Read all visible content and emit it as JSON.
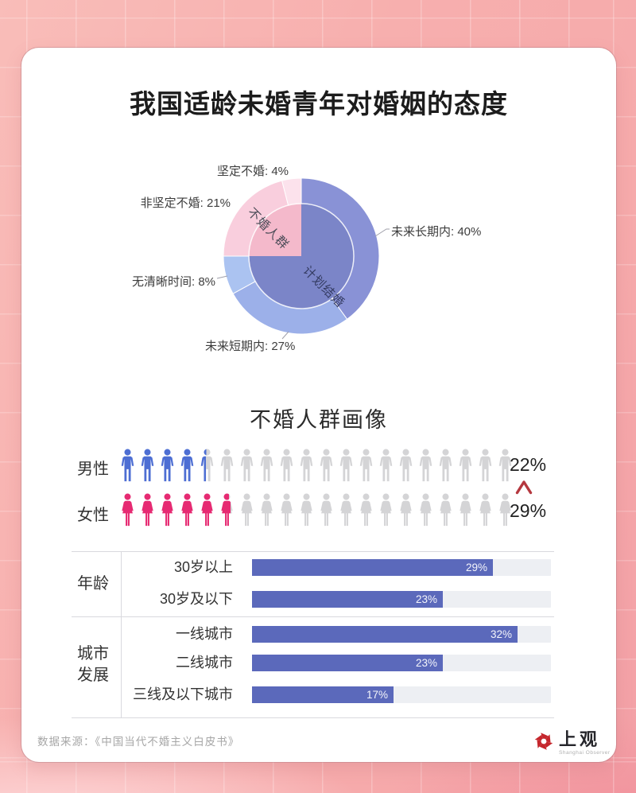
{
  "title": "我国适龄未婚青年对婚姻的态度",
  "section_heading": "不婚人群画像",
  "chart_data": [
    {
      "type": "pie",
      "title": "我国适龄未婚青年对婚姻的态度",
      "style": "two-level donut, clockwise from top",
      "inner_groups": [
        {
          "label": "计划结婚",
          "value": 75,
          "color": "#7b85c8"
        },
        {
          "label": "不婚人群",
          "value": 25,
          "color": "#f4b9cb"
        }
      ],
      "slices": [
        {
          "label": "未来长期内",
          "value": 40,
          "display": "未来长期内: 40%",
          "color": "#8992d6",
          "group": "计划结婚"
        },
        {
          "label": "未来短期内",
          "value": 27,
          "display": "未来短期内: 27%",
          "color": "#9cb0e9",
          "group": "计划结婚"
        },
        {
          "label": "无清晰时间",
          "value": 8,
          "display": "无清晰时间: 8%",
          "color": "#abc3f1",
          "group": "计划结婚"
        },
        {
          "label": "非坚定不婚",
          "value": 21,
          "display": "非坚定不婚: 21%",
          "color": "#f9cedd",
          "group": "不婚人群"
        },
        {
          "label": "坚定不婚",
          "value": 4,
          "display": "坚定不婚: 4%",
          "color": "#fce2ec",
          "group": "不婚人群"
        }
      ]
    },
    {
      "type": "pictogram",
      "title": "不婚人群画像",
      "total_icons": 20,
      "rows": [
        {
          "label": "男性",
          "icon": "male",
          "percent": 22,
          "display": "22%",
          "color": "#4d6ed3"
        },
        {
          "label": "女性",
          "icon": "female",
          "percent": 29,
          "display": "29%",
          "color": "#e62a72"
        }
      ],
      "empty_icon_color": "#d4d4d6",
      "comparison_marker": "∧",
      "comparison_marker_color": "#b5383f"
    },
    {
      "type": "bar",
      "orientation": "horizontal",
      "scale_max": 36,
      "bar_color": "#5b69bb",
      "track_color": "#edeff3",
      "groups": [
        {
          "label": "年龄",
          "rows": [
            {
              "label": "30岁以上",
              "value": 29,
              "display": "29%"
            },
            {
              "label": "30岁及以下",
              "value": 23,
              "display": "23%"
            }
          ]
        },
        {
          "label": "城市发展",
          "rows": [
            {
              "label": "一线城市",
              "value": 32,
              "display": "32%"
            },
            {
              "label": "二线城市",
              "value": 23,
              "display": "23%"
            },
            {
              "label": "三线及以下城市",
              "value": 17,
              "display": "17%"
            }
          ]
        }
      ]
    }
  ],
  "footer": {
    "source": "数据来源：《中国当代不婚主义白皮书》"
  },
  "logo": {
    "name": "上观",
    "subtext": "Shanghai Observer",
    "color": "#c5262c"
  },
  "palette": {
    "background_pink": "#f7aeae",
    "card": "#ffffff",
    "title_text": "#1c1c1c"
  }
}
